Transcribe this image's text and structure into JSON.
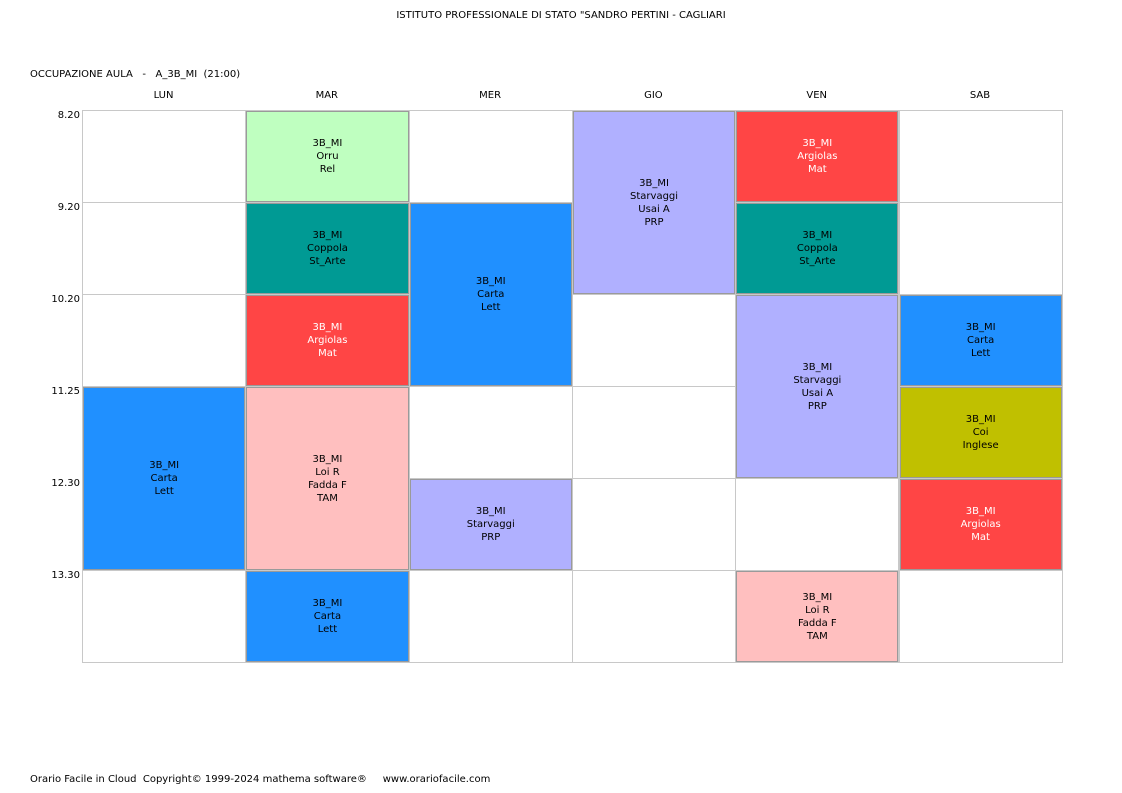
{
  "header": {
    "school": "ISTITUTO PROFESSIONALE DI STATO \"SANDRO PERTINI - CAGLIARI",
    "room_line": "OCCUPAZIONE AULA   -   A_3B_MI  (21:00)"
  },
  "days": [
    "LUN",
    "MAR",
    "MER",
    "GIO",
    "VEN",
    "SAB"
  ],
  "times": [
    "8.20",
    "9.20",
    "10.20",
    "11.25",
    "12.30",
    "13.30"
  ],
  "colors": {
    "green": "#bfffc0",
    "teal": "#009a94",
    "red": "#ff4545",
    "blue": "#2090ff",
    "pink": "#ffbfbf",
    "lavender": "#b0b0ff",
    "olive": "#c0c000",
    "white_text": "#ffffff",
    "black_text": "#000000"
  },
  "lessons": [
    {
      "day": 0,
      "start": 3,
      "span": 2,
      "color": "blue",
      "text_color": "black_text",
      "lines": [
        "3B_MI",
        "Carta",
        "Lett"
      ]
    },
    {
      "day": 1,
      "start": 0,
      "span": 1,
      "color": "green",
      "text_color": "black_text",
      "lines": [
        "3B_MI",
        "Orru",
        "Rel"
      ]
    },
    {
      "day": 1,
      "start": 1,
      "span": 1,
      "color": "teal",
      "text_color": "black_text",
      "lines": [
        "3B_MI",
        "Coppola",
        "St_Arte"
      ]
    },
    {
      "day": 1,
      "start": 2,
      "span": 1,
      "color": "red",
      "text_color": "white_text",
      "lines": [
        "3B_MI",
        "Argiolas",
        "Mat"
      ]
    },
    {
      "day": 1,
      "start": 3,
      "span": 2,
      "color": "pink",
      "text_color": "black_text",
      "lines": [
        "3B_MI",
        "Loi R",
        "Fadda F",
        "TAM"
      ]
    },
    {
      "day": 1,
      "start": 5,
      "span": 1,
      "color": "blue",
      "text_color": "black_text",
      "lines": [
        "3B_MI",
        "Carta",
        "Lett"
      ]
    },
    {
      "day": 2,
      "start": 1,
      "span": 2,
      "color": "blue",
      "text_color": "black_text",
      "lines": [
        "3B_MI",
        "Carta",
        "Lett"
      ]
    },
    {
      "day": 2,
      "start": 4,
      "span": 1,
      "color": "lavender",
      "text_color": "black_text",
      "lines": [
        "3B_MI",
        "Starvaggi",
        "PRP"
      ]
    },
    {
      "day": 3,
      "start": 0,
      "span": 2,
      "color": "lavender",
      "text_color": "black_text",
      "lines": [
        "3B_MI",
        "Starvaggi",
        "Usai A",
        "PRP"
      ]
    },
    {
      "day": 4,
      "start": 0,
      "span": 1,
      "color": "red",
      "text_color": "white_text",
      "lines": [
        "3B_MI",
        "Argiolas",
        "Mat"
      ]
    },
    {
      "day": 4,
      "start": 1,
      "span": 1,
      "color": "teal",
      "text_color": "black_text",
      "lines": [
        "3B_MI",
        "Coppola",
        "St_Arte"
      ]
    },
    {
      "day": 4,
      "start": 2,
      "span": 2,
      "color": "lavender",
      "text_color": "black_text",
      "lines": [
        "3B_MI",
        "Starvaggi",
        "Usai A",
        "PRP"
      ]
    },
    {
      "day": 4,
      "start": 5,
      "span": 1,
      "color": "pink",
      "text_color": "black_text",
      "lines": [
        "3B_MI",
        "Loi R",
        "Fadda F",
        "TAM"
      ]
    },
    {
      "day": 5,
      "start": 2,
      "span": 1,
      "color": "blue",
      "text_color": "black_text",
      "lines": [
        "3B_MI",
        "Carta",
        "Lett"
      ]
    },
    {
      "day": 5,
      "start": 3,
      "span": 1,
      "color": "olive",
      "text_color": "black_text",
      "lines": [
        "3B_MI",
        "Coi",
        "Inglese"
      ]
    },
    {
      "day": 5,
      "start": 4,
      "span": 1,
      "color": "red",
      "text_color": "white_text",
      "lines": [
        "3B_MI",
        "Argiolas",
        "Mat"
      ]
    }
  ],
  "footer": {
    "text": "Orario Facile in Cloud  Copyright© 1999-2024 mathema software®     www.orariofacile.com"
  }
}
